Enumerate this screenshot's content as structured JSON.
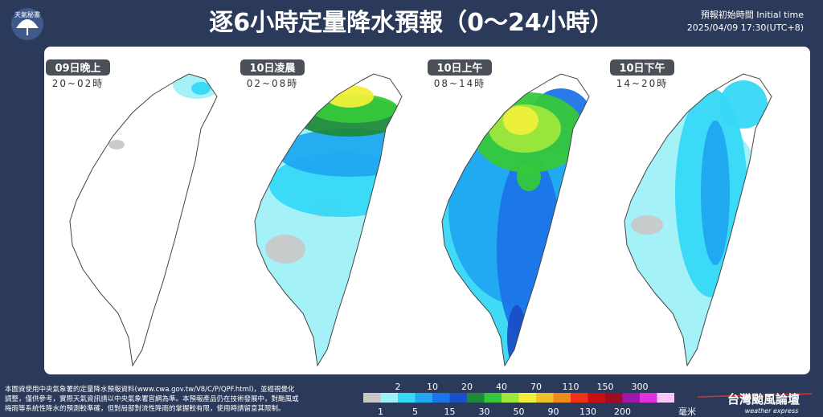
{
  "header": {
    "logo": "天氣秘書",
    "title": "逐6小時定量降水預報（0～24小時）",
    "init_label": "預報初始時間 Initial time",
    "init_time": "2025/04/09 17:30(UTC+8)"
  },
  "panels": [
    {
      "day": "09日晚上",
      "hours": "20~02時"
    },
    {
      "day": "10日凌晨",
      "hours": "02~08時"
    },
    {
      "day": "10日上午",
      "hours": "08~14時"
    },
    {
      "day": "10日下午",
      "hours": "14~20時"
    }
  ],
  "legend": {
    "colors": [
      "#c8c8c8",
      "#9ff0f8",
      "#36d8f5",
      "#20a8f0",
      "#1c74e8",
      "#1a4fc8",
      "#1f8a3c",
      "#36c83a",
      "#9ee83c",
      "#f0f03a",
      "#f0c028",
      "#f08a1e",
      "#f03018",
      "#c81010",
      "#a00c28",
      "#a018a8",
      "#e030e0",
      "#f8c8f8"
    ],
    "top_labels": [
      2,
      10,
      20,
      40,
      70,
      110,
      150,
      300
    ],
    "bottom_labels": [
      1,
      5,
      15,
      30,
      50,
      90,
      130,
      200
    ],
    "unit": "毫米"
  },
  "footer": {
    "note": [
      "本圖資使用中央氣象署的定量降水預報資料(www.cwa.gov.tw/V8/C/P/QPF.html)，並經視覺化",
      "調整，僅供參考，實際天氣資訊請以中央氣象署官網為準。本預報產品仍在技術發展中，對颱風或",
      "梅雨等系統性降水的預測較準確，但對局部對流性降雨的掌握較有限，使用時請留意其限制。"
    ],
    "brand": "台灣颱風論壇",
    "brand_sub": "weather express"
  }
}
